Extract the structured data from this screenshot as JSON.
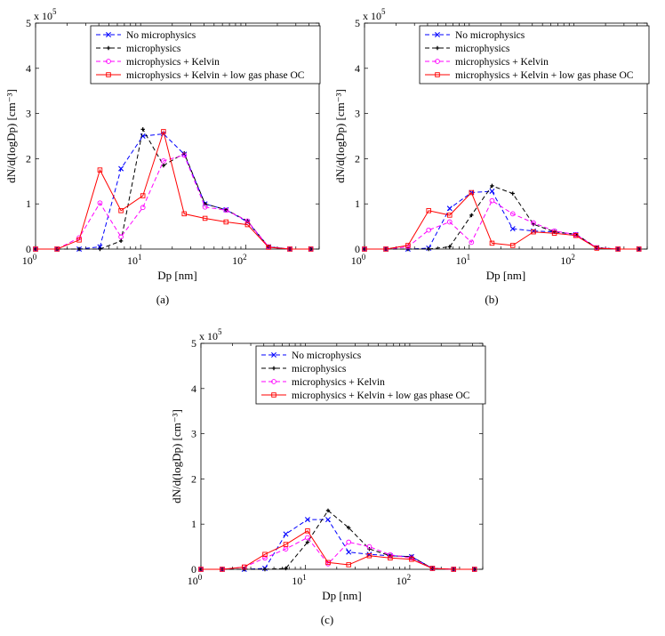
{
  "figure": {
    "panel_labels": [
      "(a)",
      "(b)",
      "(c)"
    ]
  },
  "colors": {
    "no_micro": "#0000ff",
    "micro": "#000000",
    "kelvin": "#ff00ff",
    "low_oc": "#ff0000"
  },
  "chart_data": [
    {
      "type": "line",
      "panel": "(a)",
      "xscale": "log",
      "xlabel": "Dp [nm]",
      "ylabel": "dN/d(logDp) [cm⁻³]",
      "y_multiplier": "x 10",
      "y_multiplier_exp": "5",
      "xlim": [
        1,
        500
      ],
      "ylim": [
        0,
        5
      ],
      "x_ticks": [
        {
          "base": "10",
          "exp": "0",
          "v": 1
        },
        {
          "base": "10",
          "exp": "1",
          "v": 10
        },
        {
          "base": "10",
          "exp": "2",
          "v": 100
        }
      ],
      "y_ticks": [
        "0",
        "1",
        "2",
        "3",
        "4",
        "5"
      ],
      "legend": [
        "No microphysics",
        "microphysics",
        "microphysics + Kelvin",
        "microphysics + Kelvin + low gas phase OC"
      ],
      "x": [
        1,
        1.6,
        2.6,
        4.1,
        6.5,
        10.5,
        16.5,
        26,
        41,
        65,
        104,
        165,
        263,
        417
      ],
      "series": [
        {
          "name": "No microphysics",
          "values": [
            0,
            0,
            0,
            0.05,
            1.78,
            2.5,
            2.55,
            2.1,
            1.0,
            0.87,
            0.6,
            0.05,
            0,
            0
          ]
        },
        {
          "name": "microphysics",
          "values": [
            0,
            0,
            0,
            0,
            0.18,
            2.65,
            1.85,
            2.12,
            1.0,
            0.87,
            0.62,
            0.05,
            0,
            0
          ]
        },
        {
          "name": "microphysics + Kelvin",
          "values": [
            0,
            0,
            0.25,
            1.02,
            0.27,
            0.92,
            1.95,
            2.08,
            0.93,
            0.86,
            0.62,
            0.05,
            0,
            0
          ]
        },
        {
          "name": "microphysics + Kelvin + low gas phase OC",
          "values": [
            0,
            0,
            0.2,
            1.75,
            0.85,
            1.18,
            2.6,
            0.78,
            0.68,
            0.6,
            0.54,
            0.04,
            0,
            0
          ]
        }
      ]
    },
    {
      "type": "line",
      "panel": "(b)",
      "xscale": "log",
      "xlabel": "Dp [nm]",
      "ylabel": "dN/d(logDp) [cm⁻³]",
      "y_multiplier": "x 10",
      "y_multiplier_exp": "5",
      "xlim": [
        1,
        500
      ],
      "ylim": [
        0,
        5
      ],
      "x_ticks": [
        {
          "base": "10",
          "exp": "0",
          "v": 1
        },
        {
          "base": "10",
          "exp": "1",
          "v": 10
        },
        {
          "base": "10",
          "exp": "2",
          "v": 100
        }
      ],
      "y_ticks": [
        "0",
        "1",
        "2",
        "3",
        "4",
        "5"
      ],
      "legend": [
        "No microphysics",
        "microphysics",
        "microphysics + Kelvin",
        "microphysics + Kelvin + low gas phase OC"
      ],
      "x": [
        1,
        1.6,
        2.6,
        4.1,
        6.5,
        10.5,
        16.5,
        26,
        41,
        65,
        104,
        165,
        263,
        417
      ],
      "series": [
        {
          "name": "No microphysics",
          "values": [
            0,
            0,
            0,
            0.02,
            0.9,
            1.25,
            1.28,
            0.45,
            0.4,
            0.38,
            0.32,
            0.03,
            0,
            0
          ]
        },
        {
          "name": "microphysics",
          "values": [
            0,
            0,
            0,
            0,
            0.05,
            0.75,
            1.4,
            1.23,
            0.55,
            0.38,
            0.33,
            0.03,
            0,
            0
          ]
        },
        {
          "name": "microphysics + Kelvin",
          "values": [
            0,
            0,
            0.05,
            0.42,
            0.6,
            0.15,
            1.07,
            0.78,
            0.58,
            0.4,
            0.32,
            0.03,
            0,
            0
          ]
        },
        {
          "name": "microphysics + Kelvin + low gas phase OC",
          "values": [
            0,
            0,
            0.08,
            0.85,
            0.75,
            1.25,
            0.13,
            0.08,
            0.38,
            0.35,
            0.3,
            0.02,
            0,
            0
          ]
        }
      ]
    },
    {
      "type": "line",
      "panel": "(c)",
      "xscale": "log",
      "xlabel": "Dp [nm]",
      "ylabel": "dN/d(logDp) [cm⁻³]",
      "y_multiplier": "x 10",
      "y_multiplier_exp": "5",
      "xlim": [
        1,
        500
      ],
      "ylim": [
        0,
        5
      ],
      "x_ticks": [
        {
          "base": "10",
          "exp": "0",
          "v": 1
        },
        {
          "base": "10",
          "exp": "1",
          "v": 10
        },
        {
          "base": "10",
          "exp": "2",
          "v": 100
        }
      ],
      "y_ticks": [
        "0",
        "1",
        "2",
        "3",
        "4",
        "5"
      ],
      "legend": [
        "No microphysics",
        "microphysics",
        "microphysics + Kelvin",
        "microphysics + Kelvin + low gas phase OC"
      ],
      "x": [
        1,
        1.6,
        2.6,
        4.1,
        6.5,
        10.5,
        16.5,
        26,
        41,
        65,
        104,
        165,
        263,
        417
      ],
      "series": [
        {
          "name": "No microphysics",
          "values": [
            0,
            0,
            0,
            0.02,
            0.78,
            1.1,
            1.1,
            0.38,
            0.33,
            0.3,
            0.28,
            0.02,
            0,
            0
          ]
        },
        {
          "name": "microphysics",
          "values": [
            0,
            0,
            0,
            0,
            0.02,
            0.6,
            1.3,
            0.92,
            0.45,
            0.3,
            0.28,
            0.02,
            0,
            0
          ]
        },
        {
          "name": "microphysics + Kelvin",
          "values": [
            0,
            0,
            0.05,
            0.25,
            0.45,
            0.7,
            0.12,
            0.6,
            0.5,
            0.32,
            0.25,
            0.02,
            0,
            0
          ]
        },
        {
          "name": "microphysics + Kelvin + low gas phase OC",
          "values": [
            0,
            0,
            0.05,
            0.33,
            0.55,
            0.85,
            0.15,
            0.1,
            0.3,
            0.25,
            0.22,
            0.02,
            0,
            0
          ]
        }
      ]
    }
  ]
}
